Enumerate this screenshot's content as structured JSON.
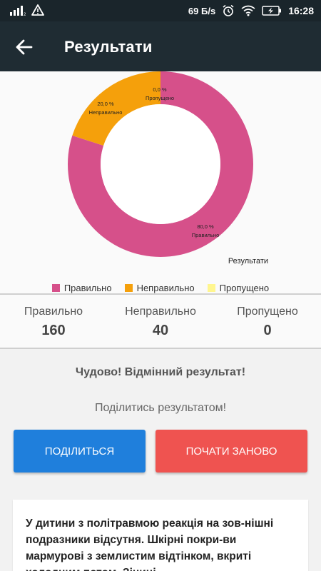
{
  "status_bar": {
    "speed": "69 Б/s",
    "time": "16:28",
    "signal_icon": "signal-icon",
    "warning_icon": "warning-icon",
    "alarm_icon": "alarm-icon",
    "wifi_icon": "wifi-icon",
    "battery_icon": "battery-charging-icon"
  },
  "app_bar": {
    "title": "Результати",
    "back_icon": "arrow-left-icon"
  },
  "chart_data": {
    "type": "pie",
    "style": "donut",
    "description": "Результати",
    "slices": [
      {
        "label": "Правильно",
        "value": 80.0,
        "display": "80,0 %",
        "color": "#d6508a"
      },
      {
        "label": "Неправильно",
        "value": 20.0,
        "display": "20,0 %",
        "color": "#f5a00b"
      },
      {
        "label": "Пропущено",
        "value": 0.0,
        "display": "0,0 %",
        "color": "#fff68f"
      }
    ],
    "legend_position": "bottom-center"
  },
  "stats": [
    {
      "label": "Правильно",
      "value": "160"
    },
    {
      "label": "Неправильно",
      "value": "40"
    },
    {
      "label": "Пропущено",
      "value": "0"
    }
  ],
  "verdict": "Чудово! Відмінний результат!",
  "share_prompt": "Поділитись результатом!",
  "buttons": {
    "share": "ПОДІЛИТЬСЯ",
    "restart": "ПОЧАТИ ЗАНОВО"
  },
  "card_text": "У дитини з політравмою реакція на зов-нішні подразники відсутня. Шкірні покри-ви мармурові з землистим відтінком, вкриті холодним потом. Зіниці"
}
